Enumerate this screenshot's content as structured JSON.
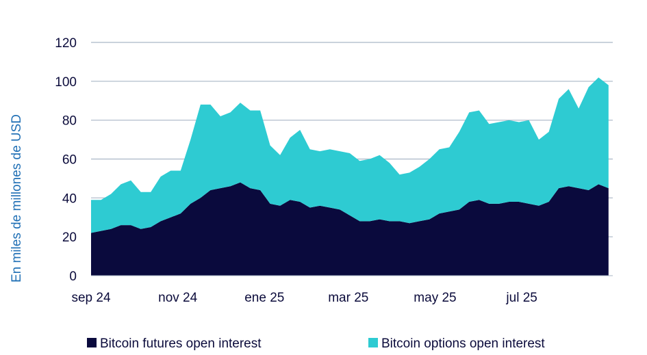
{
  "chart_data": {
    "type": "area",
    "stacked": true,
    "xlabel": "",
    "ylabel": "En miles de millones de USD",
    "ylim": [
      0,
      120
    ],
    "yticks": [
      0,
      20,
      40,
      60,
      80,
      100,
      120
    ],
    "grid": "horizontal",
    "legend_position": "bottom",
    "x_tick_labels": [
      "sep 24",
      "nov 24",
      "ene 25",
      "mar 25",
      "may 25",
      "jul 25"
    ],
    "x_tick_dates": [
      "2024-09-01",
      "2024-11-01",
      "2025-01-01",
      "2025-03-01",
      "2025-05-01",
      "2025-07-01"
    ],
    "x_domain": [
      "2024-09-01",
      "2025-09-03"
    ],
    "x": [
      "2024-09-01",
      "2024-09-08",
      "2024-09-15",
      "2024-09-22",
      "2024-09-29",
      "2024-10-06",
      "2024-10-13",
      "2024-10-20",
      "2024-10-27",
      "2024-11-03",
      "2024-11-10",
      "2024-11-17",
      "2024-11-24",
      "2024-12-01",
      "2024-12-08",
      "2024-12-15",
      "2024-12-22",
      "2024-12-29",
      "2025-01-05",
      "2025-01-12",
      "2025-01-19",
      "2025-01-26",
      "2025-02-02",
      "2025-02-09",
      "2025-02-16",
      "2025-02-23",
      "2025-03-02",
      "2025-03-09",
      "2025-03-16",
      "2025-03-23",
      "2025-03-30",
      "2025-04-06",
      "2025-04-13",
      "2025-04-20",
      "2025-04-27",
      "2025-05-04",
      "2025-05-11",
      "2025-05-18",
      "2025-05-25",
      "2025-06-01",
      "2025-06-08",
      "2025-06-15",
      "2025-06-22",
      "2025-06-29",
      "2025-07-06",
      "2025-07-13",
      "2025-07-20",
      "2025-07-27",
      "2025-08-03",
      "2025-08-10",
      "2025-08-17",
      "2025-08-24",
      "2025-08-31"
    ],
    "series": [
      {
        "name": "Bitcoin futures open interest",
        "color": "#0a0a3d",
        "values": [
          22,
          23,
          24,
          26,
          26,
          24,
          25,
          28,
          30,
          32,
          37,
          40,
          44,
          45,
          46,
          48,
          45,
          44,
          37,
          36,
          39,
          38,
          35,
          36,
          35,
          34,
          31,
          28,
          28,
          29,
          28,
          28,
          27,
          28,
          29,
          32,
          33,
          34,
          38,
          39,
          37,
          37,
          38,
          38,
          37,
          36,
          38,
          45,
          46,
          45,
          44,
          47,
          45
        ]
      },
      {
        "name": "Bitcoin options open interest",
        "color": "#2ecbd2",
        "values": [
          17,
          16,
          18,
          21,
          23,
          19,
          18,
          23,
          24,
          22,
          33,
          48,
          44,
          37,
          38,
          41,
          40,
          41,
          30,
          26,
          32,
          37,
          30,
          28,
          30,
          30,
          32,
          31,
          32,
          33,
          30,
          24,
          26,
          28,
          31,
          33,
          33,
          40,
          46,
          46,
          41,
          42,
          42,
          41,
          43,
          34,
          36,
          46,
          50,
          41,
          53,
          55,
          53
        ]
      }
    ]
  }
}
